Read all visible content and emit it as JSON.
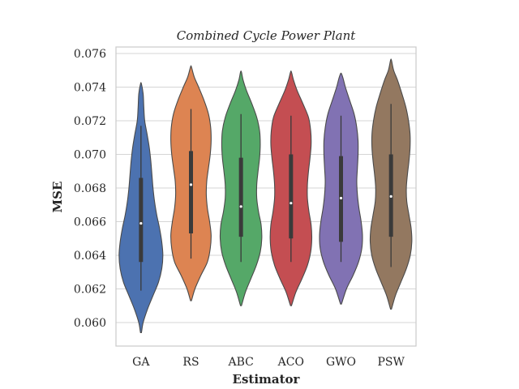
{
  "chart_data": {
    "type": "violin",
    "title": "Combined Cycle Power Plant",
    "xlabel": "Estimator",
    "ylabel": "MSE",
    "categories": [
      "GA",
      "RS",
      "ABC",
      "ACO",
      "GWO",
      "PSW"
    ],
    "ylim": [
      0.0585,
      0.0764
    ],
    "yticks": [
      0.06,
      0.062,
      0.064,
      0.066,
      0.068,
      0.07,
      0.072,
      0.074,
      0.076
    ],
    "ytick_labels": [
      "0.060",
      "0.062",
      "0.064",
      "0.066",
      "0.068",
      "0.070",
      "0.072",
      "0.074",
      "0.076"
    ],
    "grid": true,
    "series": [
      {
        "category": "GA",
        "color": "#4c72b0",
        "min": 0.0619,
        "q1": 0.0636,
        "median": 0.0659,
        "q3": 0.0686,
        "max": 0.0717,
        "density": [
          [
            0.0594,
            0.02
          ],
          [
            0.06,
            0.1
          ],
          [
            0.0608,
            0.3
          ],
          [
            0.0616,
            0.55
          ],
          [
            0.0624,
            0.8
          ],
          [
            0.0632,
            0.95
          ],
          [
            0.064,
            1.0
          ],
          [
            0.0648,
            0.95
          ],
          [
            0.0656,
            0.85
          ],
          [
            0.0664,
            0.72
          ],
          [
            0.0672,
            0.62
          ],
          [
            0.068,
            0.55
          ],
          [
            0.0688,
            0.5
          ],
          [
            0.0696,
            0.45
          ],
          [
            0.0704,
            0.38
          ],
          [
            0.0712,
            0.28
          ],
          [
            0.072,
            0.17
          ],
          [
            0.0728,
            0.13
          ],
          [
            0.0736,
            0.1
          ],
          [
            0.0742,
            0.02
          ]
        ]
      },
      {
        "category": "RS",
        "color": "#dd8452",
        "min": 0.0638,
        "q1": 0.0653,
        "median": 0.0682,
        "q3": 0.0702,
        "max": 0.0727,
        "density": [
          [
            0.0613,
            0.02
          ],
          [
            0.062,
            0.18
          ],
          [
            0.0628,
            0.45
          ],
          [
            0.0636,
            0.75
          ],
          [
            0.0644,
            0.88
          ],
          [
            0.0652,
            0.92
          ],
          [
            0.066,
            0.85
          ],
          [
            0.0668,
            0.75
          ],
          [
            0.0676,
            0.7
          ],
          [
            0.0684,
            0.72
          ],
          [
            0.0692,
            0.8
          ],
          [
            0.07,
            0.88
          ],
          [
            0.0708,
            0.92
          ],
          [
            0.0716,
            0.9
          ],
          [
            0.0724,
            0.8
          ],
          [
            0.0732,
            0.6
          ],
          [
            0.074,
            0.35
          ],
          [
            0.0746,
            0.15
          ],
          [
            0.0752,
            0.02
          ]
        ]
      },
      {
        "category": "ABC",
        "color": "#55a868",
        "min": 0.0636,
        "q1": 0.0651,
        "median": 0.0669,
        "q3": 0.0698,
        "max": 0.0724,
        "density": [
          [
            0.061,
            0.02
          ],
          [
            0.0618,
            0.2
          ],
          [
            0.0626,
            0.45
          ],
          [
            0.0634,
            0.7
          ],
          [
            0.0642,
            0.88
          ],
          [
            0.065,
            0.95
          ],
          [
            0.0658,
            0.92
          ],
          [
            0.0666,
            0.8
          ],
          [
            0.0674,
            0.72
          ],
          [
            0.0682,
            0.72
          ],
          [
            0.069,
            0.78
          ],
          [
            0.0698,
            0.85
          ],
          [
            0.0706,
            0.88
          ],
          [
            0.0714,
            0.85
          ],
          [
            0.0722,
            0.72
          ],
          [
            0.073,
            0.5
          ],
          [
            0.0738,
            0.25
          ],
          [
            0.0744,
            0.1
          ],
          [
            0.0749,
            0.02
          ]
        ]
      },
      {
        "category": "ACO",
        "color": "#c44e52",
        "min": 0.0636,
        "q1": 0.065,
        "median": 0.0671,
        "q3": 0.07,
        "max": 0.0723,
        "density": [
          [
            0.061,
            0.02
          ],
          [
            0.0618,
            0.22
          ],
          [
            0.0626,
            0.5
          ],
          [
            0.0634,
            0.75
          ],
          [
            0.0642,
            0.9
          ],
          [
            0.065,
            0.95
          ],
          [
            0.0658,
            0.92
          ],
          [
            0.0666,
            0.82
          ],
          [
            0.0674,
            0.75
          ],
          [
            0.0682,
            0.75
          ],
          [
            0.069,
            0.8
          ],
          [
            0.0698,
            0.87
          ],
          [
            0.0706,
            0.92
          ],
          [
            0.0714,
            0.9
          ],
          [
            0.0722,
            0.8
          ],
          [
            0.073,
            0.55
          ],
          [
            0.0738,
            0.28
          ],
          [
            0.0744,
            0.12
          ],
          [
            0.0749,
            0.02
          ]
        ]
      },
      {
        "category": "GWO",
        "color": "#8172b3",
        "min": 0.0636,
        "q1": 0.0648,
        "median": 0.0674,
        "q3": 0.0699,
        "max": 0.0723,
        "density": [
          [
            0.0611,
            0.02
          ],
          [
            0.062,
            0.25
          ],
          [
            0.0628,
            0.55
          ],
          [
            0.0636,
            0.8
          ],
          [
            0.0644,
            0.95
          ],
          [
            0.0652,
            0.98
          ],
          [
            0.066,
            0.92
          ],
          [
            0.0668,
            0.82
          ],
          [
            0.0676,
            0.75
          ],
          [
            0.0684,
            0.72
          ],
          [
            0.0692,
            0.75
          ],
          [
            0.07,
            0.78
          ],
          [
            0.0708,
            0.78
          ],
          [
            0.0716,
            0.72
          ],
          [
            0.0724,
            0.6
          ],
          [
            0.0732,
            0.4
          ],
          [
            0.074,
            0.2
          ],
          [
            0.0745,
            0.1
          ],
          [
            0.0748,
            0.02
          ]
        ]
      },
      {
        "category": "PSW",
        "color": "#937860",
        "min": 0.0633,
        "q1": 0.0651,
        "median": 0.0675,
        "q3": 0.07,
        "max": 0.073,
        "density": [
          [
            0.0608,
            0.02
          ],
          [
            0.0616,
            0.2
          ],
          [
            0.0624,
            0.45
          ],
          [
            0.0632,
            0.7
          ],
          [
            0.064,
            0.88
          ],
          [
            0.0648,
            0.95
          ],
          [
            0.0656,
            0.92
          ],
          [
            0.0664,
            0.82
          ],
          [
            0.0672,
            0.72
          ],
          [
            0.068,
            0.7
          ],
          [
            0.0688,
            0.75
          ],
          [
            0.0696,
            0.82
          ],
          [
            0.0704,
            0.87
          ],
          [
            0.0712,
            0.87
          ],
          [
            0.072,
            0.8
          ],
          [
            0.0728,
            0.68
          ],
          [
            0.0736,
            0.5
          ],
          [
            0.0744,
            0.3
          ],
          [
            0.075,
            0.12
          ],
          [
            0.0756,
            0.02
          ]
        ]
      }
    ]
  }
}
